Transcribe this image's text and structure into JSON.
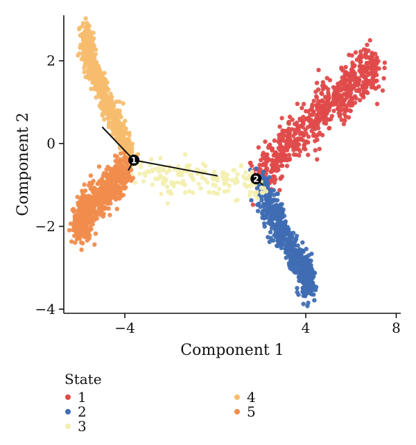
{
  "chart_data": {
    "type": "scatter",
    "title": "",
    "xlabel": "Component 1",
    "ylabel": "Component 2",
    "xlim": [
      -6.7,
      8.2
    ],
    "ylim": [
      -4.1,
      3.1
    ],
    "x_ticks": [
      {
        "value": -4,
        "label": "−4"
      },
      {
        "value": 4,
        "label": "4"
      },
      {
        "value": 8,
        "label": "8"
      }
    ],
    "y_ticks": [
      {
        "value": 2,
        "label": "2"
      },
      {
        "value": 0,
        "label": "0"
      },
      {
        "value": -2,
        "label": "−2"
      },
      {
        "value": -4,
        "label": "−4"
      }
    ],
    "grid": false,
    "legend": {
      "title": "State",
      "position": "bottom-left",
      "entries": [
        {
          "label": "1",
          "color": "#e04a4a"
        },
        {
          "label": "2",
          "color": "#3f6db3"
        },
        {
          "label": "3",
          "color": "#f3efb0"
        },
        {
          "label": "4",
          "color": "#f7bd6e"
        },
        {
          "label": "5",
          "color": "#f08c4c"
        }
      ]
    },
    "states": [
      {
        "name": "1",
        "color": "#e04a4a",
        "path": [
          [
            2.0,
            -0.8
          ],
          [
            3.2,
            0.0
          ],
          [
            4.8,
            0.8
          ],
          [
            6.0,
            1.4
          ],
          [
            7.0,
            1.9
          ]
        ],
        "spread": 0.28,
        "density": "dense"
      },
      {
        "name": "2",
        "color": "#3f6db3",
        "path": [
          [
            2.0,
            -0.9
          ],
          [
            2.6,
            -1.8
          ],
          [
            3.4,
            -2.6
          ],
          [
            4.0,
            -3.1
          ],
          [
            4.1,
            -3.5
          ]
        ],
        "spread": 0.18,
        "density": "dense"
      },
      {
        "name": "3",
        "color": "#f3efb0",
        "path": [
          [
            -3.6,
            -0.7
          ],
          [
            -2.0,
            -0.85
          ],
          [
            -0.5,
            -0.8
          ],
          [
            0.8,
            -0.9
          ],
          [
            2.0,
            -0.9
          ]
        ],
        "spread": 0.22,
        "density": "sparse"
      },
      {
        "name": "4",
        "color": "#f7bd6e",
        "path": [
          [
            -5.7,
            2.7
          ],
          [
            -5.6,
            2.0
          ],
          [
            -5.0,
            1.3
          ],
          [
            -4.3,
            0.4
          ],
          [
            -3.8,
            -0.3
          ]
        ],
        "spread": 0.14,
        "density": "dense"
      },
      {
        "name": "5",
        "color": "#f08c4c",
        "path": [
          [
            -3.9,
            -0.6
          ],
          [
            -4.9,
            -1.2
          ],
          [
            -5.8,
            -1.6
          ],
          [
            -5.9,
            -2.1
          ]
        ],
        "spread": 0.2,
        "density": "dense"
      }
    ],
    "trajectory": [
      {
        "from": [
          -5.0,
          0.4
        ],
        "to": [
          -3.6,
          -0.4
        ]
      },
      {
        "from": [
          -3.6,
          -0.4
        ],
        "to": [
          0.1,
          -0.78
        ]
      },
      {
        "from": [
          -3.6,
          -0.4
        ],
        "to": [
          -3.85,
          -0.65
        ]
      },
      {
        "from": [
          1.8,
          -0.85
        ],
        "to": [
          2.1,
          -1.0
        ]
      }
    ],
    "branch_points": [
      {
        "label": "1",
        "x": -3.6,
        "y": -0.4
      },
      {
        "label": "2",
        "x": 1.8,
        "y": -0.85
      }
    ]
  }
}
